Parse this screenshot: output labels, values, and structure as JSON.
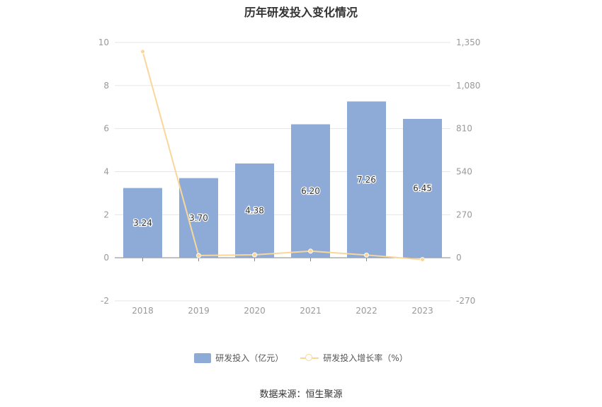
{
  "title": "历年研发投入变化情况",
  "source": "数据来源：恒生聚源",
  "legend": {
    "bar_label": "研发投入（亿元）",
    "line_label": "研发投入增长率（%）"
  },
  "colors": {
    "bar": "#8eabd8",
    "line": "#f9d79a",
    "grid": "#e6e6e6",
    "axis_text": "#999999"
  },
  "chart_data": {
    "type": "bar",
    "title": "历年研发投入变化情况",
    "categories": [
      "2018",
      "2019",
      "2020",
      "2021",
      "2022",
      "2023"
    ],
    "series": [
      {
        "name": "研发投入（亿元）",
        "type": "bar",
        "axis": "left",
        "values": [
          3.24,
          3.7,
          4.38,
          6.2,
          7.26,
          6.45
        ],
        "labels": [
          "3.24",
          "3.70",
          "4.38",
          "6.20",
          "7.26",
          "6.45"
        ]
      },
      {
        "name": "研发投入增长率（%）",
        "type": "line",
        "axis": "right",
        "values": [
          1293,
          14.2,
          18.4,
          41.6,
          17.1,
          -11.2
        ]
      }
    ],
    "left_axis": {
      "ylim": [
        -2,
        10
      ],
      "ticks": [
        "-2",
        "0",
        "2",
        "4",
        "6",
        "8",
        "10"
      ]
    },
    "right_axis": {
      "ylim": [
        -270,
        1350
      ],
      "ticks": [
        "-270",
        "0",
        "270",
        "540",
        "810",
        "1,080",
        "1,350"
      ]
    },
    "grid": true,
    "legend_position": "bottom"
  }
}
